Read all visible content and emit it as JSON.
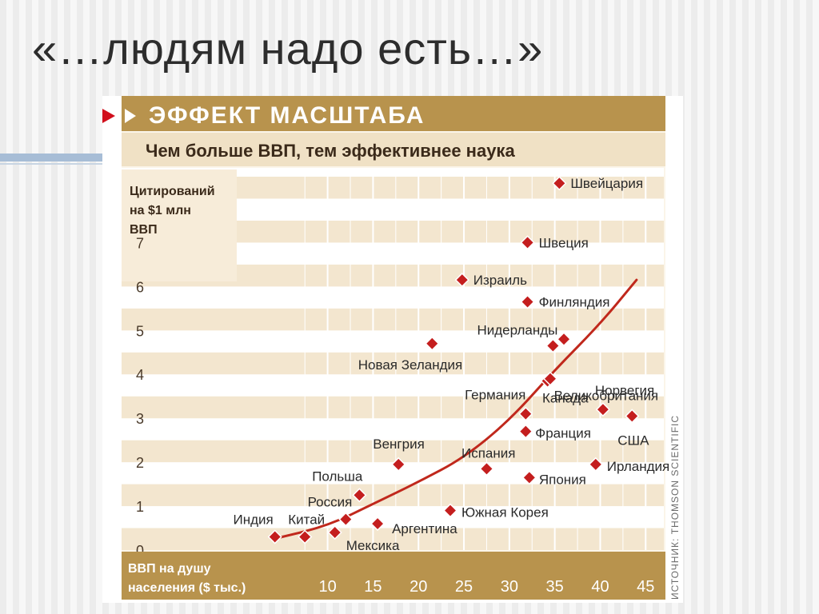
{
  "slide": {
    "title": "«…людям надо есть…»"
  },
  "chart_data": {
    "type": "scatter",
    "title": "ЭФФЕКТ МАСШТАБА",
    "subtitle": "Чем больше ВВП, тем эффективнее наука",
    "ylabel": [
      "Цитирований",
      "на $1 млн",
      "ВВП"
    ],
    "xlabel": [
      "ВВП на душу",
      "населения ($ тыс.)"
    ],
    "source": "ИСТОЧНИК: THOMSON SCIENTIFIC",
    "xlim": [
      0,
      47
    ],
    "ylim": [
      0,
      8.7
    ],
    "x_ticks": [
      10,
      15,
      20,
      25,
      30,
      35,
      40,
      45
    ],
    "y_ticks": [
      0,
      1,
      2,
      3,
      4,
      5,
      6,
      7
    ],
    "grid": true,
    "colors": {
      "banner": "#b8934d",
      "band": "#f3e6cf",
      "marker": "#c41e1e",
      "trend": "#c0281c",
      "arrow": "#d10f1c"
    },
    "points": [
      {
        "label": "Швейцария",
        "x": 35.5,
        "y": 8.35
      },
      {
        "label": "Швеция",
        "x": 32.0,
        "y": 7.0
      },
      {
        "label": "Израиль",
        "x": 24.8,
        "y": 6.15
      },
      {
        "label": "Финляндия",
        "x": 32.0,
        "y": 5.65
      },
      {
        "label": "Нидерланды",
        "x": 34.8,
        "y": 4.65
      },
      {
        "label": "",
        "x": 36.0,
        "y": 4.8
      },
      {
        "label": "Великобритания",
        "x": 34.2,
        "y": 3.85
      },
      {
        "label": "Новая Зеландия",
        "x": 21.5,
        "y": 4.7
      },
      {
        "label": "Германия",
        "x": 31.8,
        "y": 3.1
      },
      {
        "label": "Канада",
        "x": 34.5,
        "y": 3.9
      },
      {
        "label": "Норвегия",
        "x": 40.3,
        "y": 3.2
      },
      {
        "label": "США",
        "x": 43.5,
        "y": 3.05
      },
      {
        "label": "Франция",
        "x": 31.8,
        "y": 2.7
      },
      {
        "label": "Ирландия",
        "x": 39.5,
        "y": 1.95
      },
      {
        "label": "Испания",
        "x": 27.5,
        "y": 1.85
      },
      {
        "label": "Япония",
        "x": 32.2,
        "y": 1.65
      },
      {
        "label": "Венгрия",
        "x": 17.8,
        "y": 1.95
      },
      {
        "label": "Польша",
        "x": 13.5,
        "y": 1.25
      },
      {
        "label": "Россия",
        "x": 12.0,
        "y": 0.7
      },
      {
        "label": "Южная Корея",
        "x": 23.5,
        "y": 0.9
      },
      {
        "label": "Аргентина",
        "x": 15.5,
        "y": 0.6
      },
      {
        "label": "Мексика",
        "x": 10.8,
        "y": 0.4
      },
      {
        "label": "Китай",
        "x": 7.5,
        "y": 0.3
      },
      {
        "label": "Индия",
        "x": 4.2,
        "y": 0.3
      }
    ],
    "trend_line": [
      {
        "x": 4.0,
        "y": 0.25
      },
      {
        "x": 10.0,
        "y": 0.55
      },
      {
        "x": 15.0,
        "y": 1.05
      },
      {
        "x": 20.0,
        "y": 1.55
      },
      {
        "x": 25.0,
        "y": 2.1
      },
      {
        "x": 30.0,
        "y": 2.95
      },
      {
        "x": 35.0,
        "y": 4.1
      },
      {
        "x": 40.0,
        "y": 5.15
      },
      {
        "x": 44.0,
        "y": 6.15
      }
    ]
  }
}
